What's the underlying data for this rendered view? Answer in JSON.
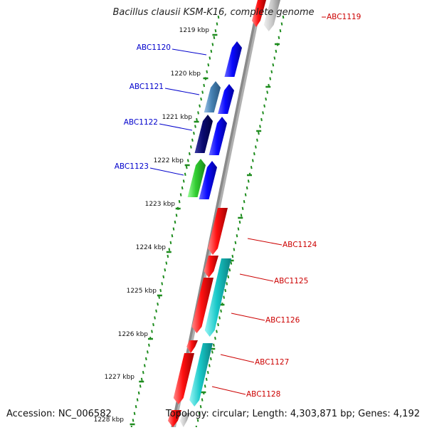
{
  "title": "Bacillus clausii KSM-K16, complete genome",
  "footer": {
    "accession": "Accession: NC_006582",
    "topology": "Topology: circular; Length: 4,303,871 bp; Genes: 4,192"
  },
  "colors": {
    "backbone": "#8a8a8a",
    "ticks": "#1e8c1e",
    "label_plus": "#0000cc",
    "label_minus": "#cc0000"
  },
  "kbp_ticks": [
    "1219 kbp",
    "1220 kbp",
    "1221 kbp",
    "1222 kbp",
    "1223 kbp",
    "1224 kbp",
    "1225 kbp",
    "1226 kbp",
    "1227 kbp",
    "1228 kbp"
  ],
  "genes_top_left": [
    {
      "label": "ABC1120",
      "strand": "plus"
    },
    {
      "label": "ABC1121",
      "strand": "plus"
    },
    {
      "label": "ABC1122",
      "strand": "plus"
    },
    {
      "label": "ABC1123",
      "strand": "plus"
    }
  ],
  "genes_right": [
    {
      "label": "ABC1119",
      "strand": "minus"
    },
    {
      "label": "ABC1124",
      "strand": "minus"
    },
    {
      "label": "ABC1125",
      "strand": "minus"
    },
    {
      "label": "ABC1126",
      "strand": "minus"
    },
    {
      "label": "ABC1127",
      "strand": "minus"
    },
    {
      "label": "ABC1128",
      "strand": "minus"
    }
  ]
}
